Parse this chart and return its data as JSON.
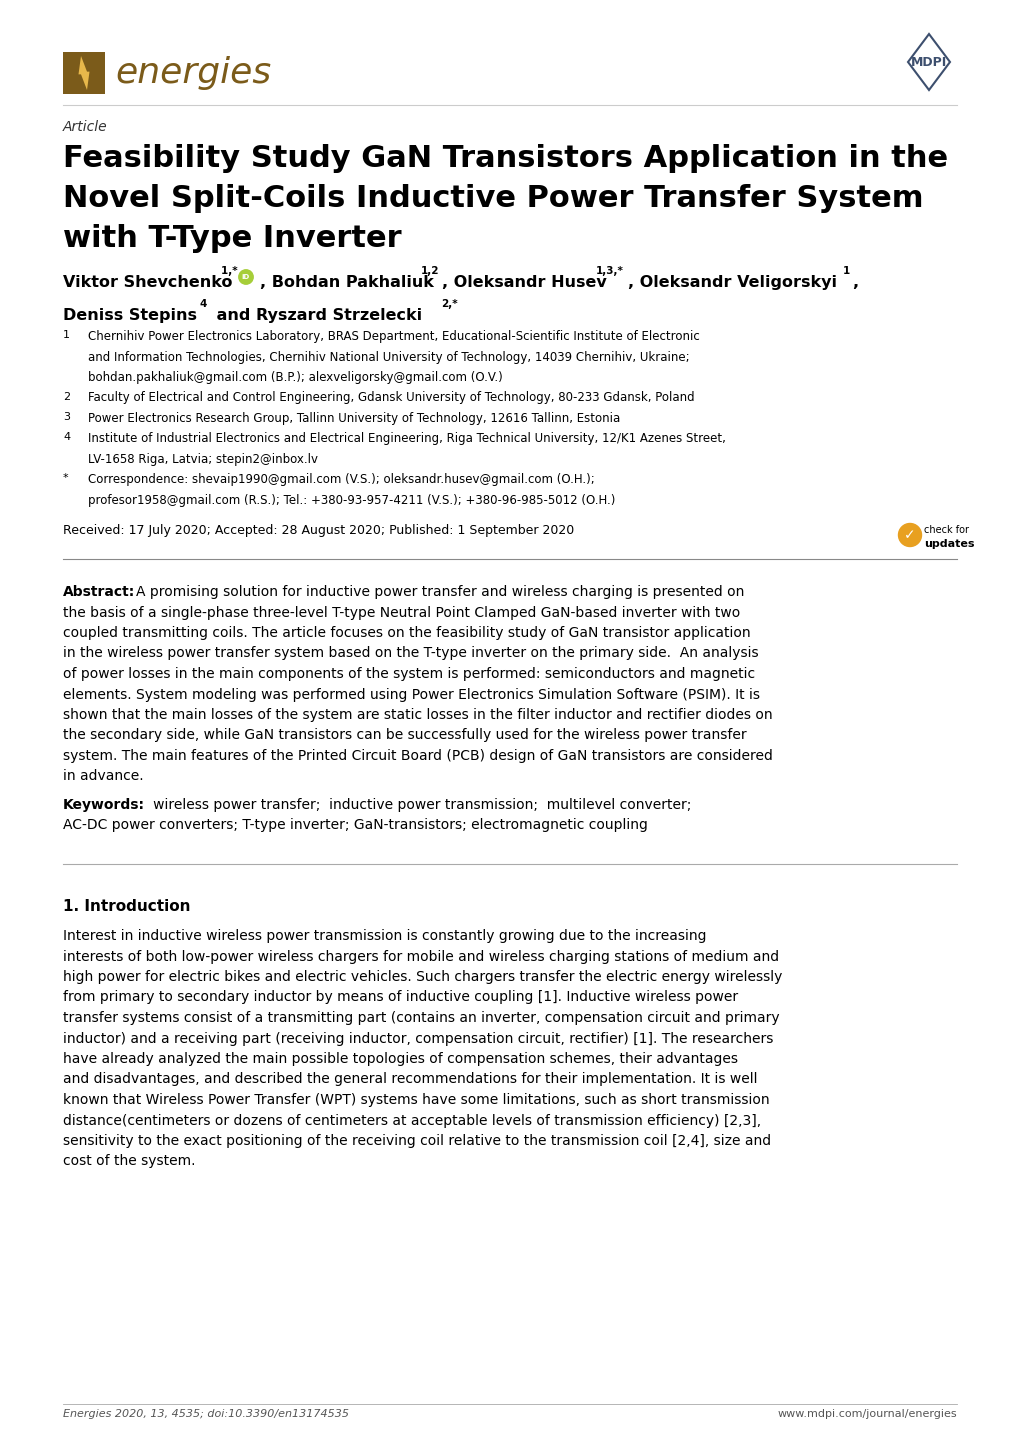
{
  "background_color": "#ffffff",
  "page_width": 10.2,
  "page_height": 14.42,
  "ml": 0.63,
  "mr": 0.63,
  "energies_logo_color": "#7B5B1A",
  "bolt_color": "#E8B84B",
  "mdpi_color": "#3D4F6E",
  "article_label": "Article",
  "title_line1": "Feasibility Study GaN Transistors Application in the",
  "title_line2": "Novel Split-Coils Inductive Power Transfer System",
  "title_line3": "with T-Type Inverter",
  "received": "Received: 17 July 2020; Accepted: 28 August 2020; Published: 1 September 2020",
  "abstract_label": "Abstract:",
  "abstract_lines": [
    "A promising solution for inductive power transfer and wireless charging is presented on",
    "the basis of a single-phase three-level T-type Neutral Point Clamped GaN-based inverter with two",
    "coupled transmitting coils. The article focuses on the feasibility study of GaN transistor application",
    "in the wireless power transfer system based on the T-type inverter on the primary side.  An analysis",
    "of power losses in the main components of the system is performed: semiconductors and magnetic",
    "elements. System modeling was performed using Power Electronics Simulation Software (PSIM). It is",
    "shown that the main losses of the system are static losses in the filter inductor and rectifier diodes on",
    "the secondary side, while GaN transistors can be successfully used for the wireless power transfer",
    "system. The main features of the Printed Circuit Board (PCB) design of GaN transistors are considered",
    "in advance."
  ],
  "keywords_label": "Keywords:",
  "keywords_line1": "   wireless power transfer;  inductive power transmission;  multilevel converter;",
  "keywords_line2": "AC-DC power converters; T-type inverter; GaN-transistors; electromagnetic coupling",
  "section1_title": "1. Introduction",
  "intro_lines": [
    "Interest in inductive wireless power transmission is constantly growing due to the increasing",
    "interests of both low-power wireless chargers for mobile and wireless charging stations of medium and",
    "high power for electric bikes and electric vehicles. Such chargers transfer the electric energy wirelessly",
    "from primary to secondary inductor by means of inductive coupling [1]. Inductive wireless power",
    "transfer systems consist of a transmitting part (contains an inverter, compensation circuit and primary",
    "inductor) and a receiving part (receiving inductor, compensation circuit, rectifier) [1]. The researchers",
    "have already analyzed the main possible topologies of compensation schemes, their advantages",
    "and disadvantages, and described the general recommendations for their implementation. It is well",
    "known that Wireless Power Transfer (WPT) systems have some limitations, such as short transmission",
    "distance(centimeters or dozens of centimeters at acceptable levels of transmission efficiency) [2,3],",
    "sensitivity to the exact positioning of the receiving coil relative to the transmission coil [2,4], size and",
    "cost of the system."
  ],
  "footer_left": "Energies 2020, 13, 4535; doi:10.3390/en13174535",
  "footer_right": "www.mdpi.com/journal/energies"
}
